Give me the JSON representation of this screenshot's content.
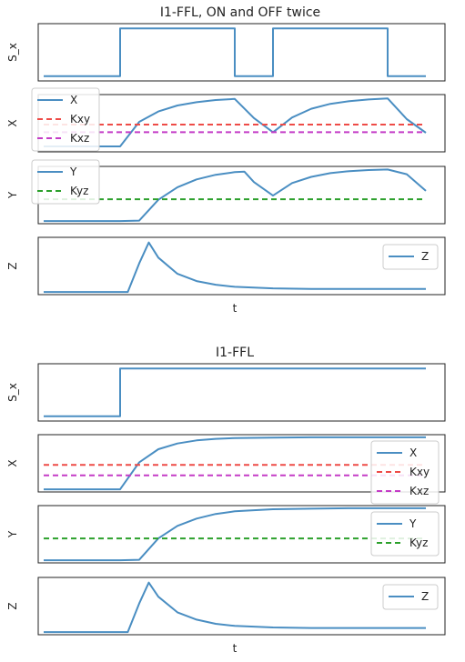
{
  "chart_data": [
    {
      "type": "line",
      "title": "I1-FFL, ON and OFF twice",
      "xlabel": "t",
      "panels": [
        {
          "ylabel": "S_x",
          "ylim": [
            -0.1,
            1.1
          ],
          "series": [
            {
              "key": "S_x",
              "color": "#4a8ec2",
              "dashed": false,
              "x": [
                0,
                2,
                2,
                5,
                5,
                6,
                6,
                9,
                9,
                10
              ],
              "y": [
                0,
                0,
                1,
                1,
                0,
                0,
                1,
                1,
                0,
                0
              ]
            }
          ],
          "legend": null
        },
        {
          "ylabel": "X",
          "ylim": [
            0.0,
            1.05
          ],
          "series": [
            {
              "name": "X",
              "color": "#4a8ec2",
              "dashed": false,
              "x": [
                0,
                1,
                2,
                2.5,
                3,
                3.5,
                4,
                4.5,
                5,
                5.5,
                6,
                6.5,
                7,
                7.5,
                8,
                8.5,
                9,
                9.5,
                10
              ],
              "y": [
                0.1,
                0.1,
                0.1,
                0.55,
                0.74,
                0.85,
                0.91,
                0.95,
                0.97,
                0.62,
                0.36,
                0.63,
                0.79,
                0.88,
                0.93,
                0.96,
                0.98,
                0.6,
                0.35
              ]
            },
            {
              "name": "Kxy",
              "color": "#ee4b47",
              "dashed": true,
              "x": [
                0,
                10
              ],
              "y": [
                0.5,
                0.5
              ]
            },
            {
              "name": "Kxz",
              "color": "#c43cc6",
              "dashed": true,
              "x": [
                0,
                10
              ],
              "y": [
                0.36,
                0.36
              ]
            }
          ],
          "legend": "upper-left"
        },
        {
          "ylabel": "Y",
          "ylim": [
            -0.05,
            1.05
          ],
          "series": [
            {
              "name": "Y",
              "color": "#4a8ec2",
              "dashed": false,
              "x": [
                0,
                1,
                1.5,
                2,
                2.5,
                3,
                3.5,
                4,
                4.5,
                5,
                5.25,
                5.5,
                6,
                6.5,
                7,
                7.5,
                8,
                8.5,
                9,
                9.5,
                10
              ],
              "y": [
                0.0,
                0.0,
                0.0,
                0.0,
                0.01,
                0.41,
                0.65,
                0.8,
                0.89,
                0.94,
                0.95,
                0.75,
                0.49,
                0.73,
                0.85,
                0.92,
                0.96,
                0.98,
                0.99,
                0.9,
                0.58
              ]
            },
            {
              "name": "Kyz",
              "color": "#2ca02c",
              "dashed": true,
              "x": [
                0,
                10
              ],
              "y": [
                0.42,
                0.42
              ]
            }
          ],
          "legend": "upper-left"
        },
        {
          "ylabel": "Z",
          "ylim": [
            -0.05,
            1.05
          ],
          "series": [
            {
              "name": "Z",
              "color": "#4a8ec2",
              "dashed": false,
              "x": [
                0,
                1,
                1.5,
                2,
                2.2,
                2.5,
                2.75,
                3,
                3.5,
                4,
                4.5,
                5,
                6,
                7,
                8,
                9,
                10
              ],
              "y": [
                0.0,
                0.0,
                0.0,
                0.0,
                0.0,
                0.55,
                0.95,
                0.66,
                0.35,
                0.21,
                0.14,
                0.1,
                0.07,
                0.06,
                0.06,
                0.06,
                0.06
              ]
            }
          ],
          "legend": "upper-right"
        }
      ]
    },
    {
      "type": "line",
      "title": "I1-FFL",
      "xlabel": "t",
      "panels": [
        {
          "ylabel": "S_x",
          "ylim": [
            -0.1,
            1.1
          ],
          "series": [
            {
              "key": "S_x",
              "color": "#4a8ec2",
              "dashed": false,
              "x": [
                0,
                2,
                2,
                10
              ],
              "y": [
                0,
                0,
                1,
                1
              ]
            }
          ],
          "legend": null
        },
        {
          "ylabel": "X",
          "ylim": [
            -0.05,
            1.05
          ],
          "series": [
            {
              "name": "X",
              "color": "#4a8ec2",
              "dashed": false,
              "x": [
                0,
                1,
                2,
                2.5,
                3,
                3.5,
                4,
                4.5,
                5,
                6,
                7,
                8,
                9,
                10
              ],
              "y": [
                0.0,
                0.0,
                0.0,
                0.52,
                0.77,
                0.88,
                0.94,
                0.97,
                0.985,
                0.995,
                1.0,
                1.0,
                1.0,
                1.0
              ]
            },
            {
              "name": "Kxy",
              "color": "#ee4b47",
              "dashed": true,
              "x": [
                0,
                10
              ],
              "y": [
                0.47,
                0.47
              ]
            },
            {
              "name": "Kxz",
              "color": "#c43cc6",
              "dashed": true,
              "x": [
                0,
                10
              ],
              "y": [
                0.27,
                0.27
              ]
            }
          ],
          "legend": "center-right"
        },
        {
          "ylabel": "Y",
          "ylim": [
            -0.05,
            1.05
          ],
          "series": [
            {
              "name": "Y",
              "color": "#4a8ec2",
              "dashed": false,
              "x": [
                0,
                1,
                1.5,
                2,
                2.5,
                3,
                3.5,
                4,
                4.5,
                5,
                6,
                7,
                8,
                9,
                10
              ],
              "y": [
                0.0,
                0.0,
                0.0,
                0.0,
                0.01,
                0.42,
                0.66,
                0.8,
                0.89,
                0.94,
                0.98,
                0.99,
                1.0,
                1.0,
                1.0
              ]
            },
            {
              "name": "Kyz",
              "color": "#2ca02c",
              "dashed": true,
              "x": [
                0,
                10
              ],
              "y": [
                0.42,
                0.42
              ]
            }
          ],
          "legend": "center-right"
        },
        {
          "ylabel": "Z",
          "ylim": [
            -0.05,
            1.05
          ],
          "series": [
            {
              "name": "Z",
              "color": "#4a8ec2",
              "dashed": false,
              "x": [
                0,
                1,
                1.5,
                2,
                2.2,
                2.5,
                2.75,
                3,
                3.5,
                4,
                4.5,
                5,
                6,
                7,
                8,
                9,
                10
              ],
              "y": [
                0.0,
                0.0,
                0.0,
                0.0,
                0.0,
                0.55,
                0.95,
                0.68,
                0.38,
                0.24,
                0.16,
                0.12,
                0.09,
                0.08,
                0.08,
                0.08,
                0.08
              ]
            }
          ],
          "legend": "upper-right"
        }
      ]
    }
  ]
}
